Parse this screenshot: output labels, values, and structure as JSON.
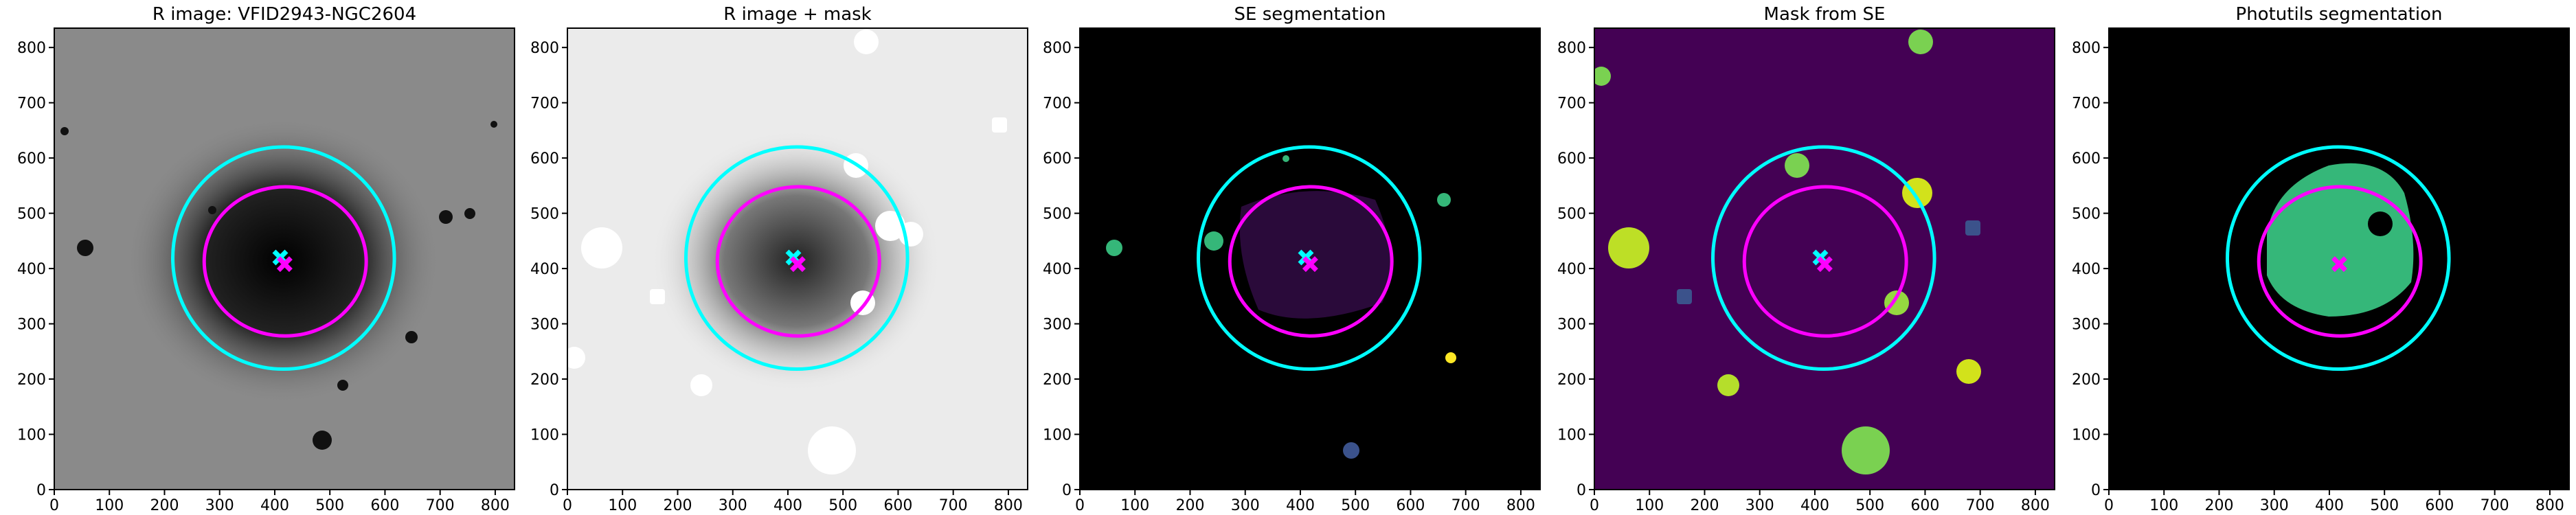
{
  "chart_data": [
    {
      "type": "image",
      "title": "R image: VFID2943-NGC2604",
      "xlim": [
        0,
        835
      ],
      "ylim": [
        0,
        835
      ],
      "xticks": [
        0,
        100,
        200,
        300,
        400,
        500,
        600,
        700,
        800
      ],
      "yticks": [
        0,
        100,
        200,
        300,
        400,
        500,
        600,
        700,
        800
      ],
      "ellipses": [
        {
          "x": 416,
          "y": 419,
          "a": 201,
          "b": 201,
          "color": "#00ffff"
        },
        {
          "x": 419,
          "y": 413,
          "a": 147,
          "b": 135,
          "color": "#ff00ff"
        }
      ],
      "markers": [
        {
          "x": 410,
          "y": 420,
          "color": "#00ffff"
        },
        {
          "x": 418,
          "y": 408,
          "color": "#ff00ff"
        }
      ]
    },
    {
      "type": "image",
      "title": "R image + mask",
      "xlim": [
        0,
        835
      ],
      "ylim": [
        0,
        835
      ],
      "xticks": [
        0,
        100,
        200,
        300,
        400,
        500,
        600,
        700,
        800
      ],
      "yticks": [
        0,
        100,
        200,
        300,
        400,
        500,
        600,
        700,
        800
      ],
      "ellipses": [
        {
          "x": 416,
          "y": 419,
          "a": 201,
          "b": 201,
          "color": "#00ffff"
        },
        {
          "x": 419,
          "y": 413,
          "a": 147,
          "b": 135,
          "color": "#ff00ff"
        }
      ],
      "markers": [
        {
          "x": 410,
          "y": 420,
          "color": "#00ffff"
        },
        {
          "x": 418,
          "y": 408,
          "color": "#ff00ff"
        }
      ]
    },
    {
      "type": "image",
      "title": "SE segmentation",
      "xlim": [
        0,
        835
      ],
      "ylim": [
        0,
        835
      ],
      "xticks": [
        0,
        100,
        200,
        300,
        400,
        500,
        600,
        700,
        800
      ],
      "yticks": [
        0,
        100,
        200,
        300,
        400,
        500,
        600,
        700,
        800
      ],
      "ellipses": [
        {
          "x": 416,
          "y": 419,
          "a": 201,
          "b": 201,
          "color": "#00ffff"
        },
        {
          "x": 419,
          "y": 413,
          "a": 147,
          "b": 135,
          "color": "#ff00ff"
        }
      ],
      "markers": [
        {
          "x": 410,
          "y": 420,
          "color": "#00ffff"
        },
        {
          "x": 418,
          "y": 408,
          "color": "#ff00ff"
        }
      ]
    },
    {
      "type": "image",
      "title": "Mask from SE",
      "xlim": [
        0,
        835
      ],
      "ylim": [
        0,
        835
      ],
      "xticks": [
        0,
        100,
        200,
        300,
        400,
        500,
        600,
        700,
        800
      ],
      "yticks": [
        0,
        100,
        200,
        300,
        400,
        500,
        600,
        700,
        800
      ],
      "ellipses": [
        {
          "x": 416,
          "y": 419,
          "a": 201,
          "b": 201,
          "color": "#00ffff"
        },
        {
          "x": 419,
          "y": 413,
          "a": 147,
          "b": 135,
          "color": "#ff00ff"
        }
      ],
      "markers": [
        {
          "x": 410,
          "y": 420,
          "color": "#00ffff"
        },
        {
          "x": 418,
          "y": 408,
          "color": "#ff00ff"
        }
      ]
    },
    {
      "type": "image",
      "title": "Photutils segmentation",
      "xlim": [
        0,
        835
      ],
      "ylim": [
        0,
        835
      ],
      "xticks": [
        0,
        100,
        200,
        300,
        400,
        500,
        600,
        700,
        800
      ],
      "yticks": [
        0,
        100,
        200,
        300,
        400,
        500,
        600,
        700,
        800
      ],
      "ellipses": [
        {
          "x": 416,
          "y": 419,
          "a": 201,
          "b": 201,
          "color": "#00ffff"
        },
        {
          "x": 419,
          "y": 413,
          "a": 147,
          "b": 135,
          "color": "#ff00ff"
        }
      ],
      "markers": [
        {
          "x": 418,
          "y": 408,
          "color": "#ff00ff"
        }
      ]
    }
  ]
}
